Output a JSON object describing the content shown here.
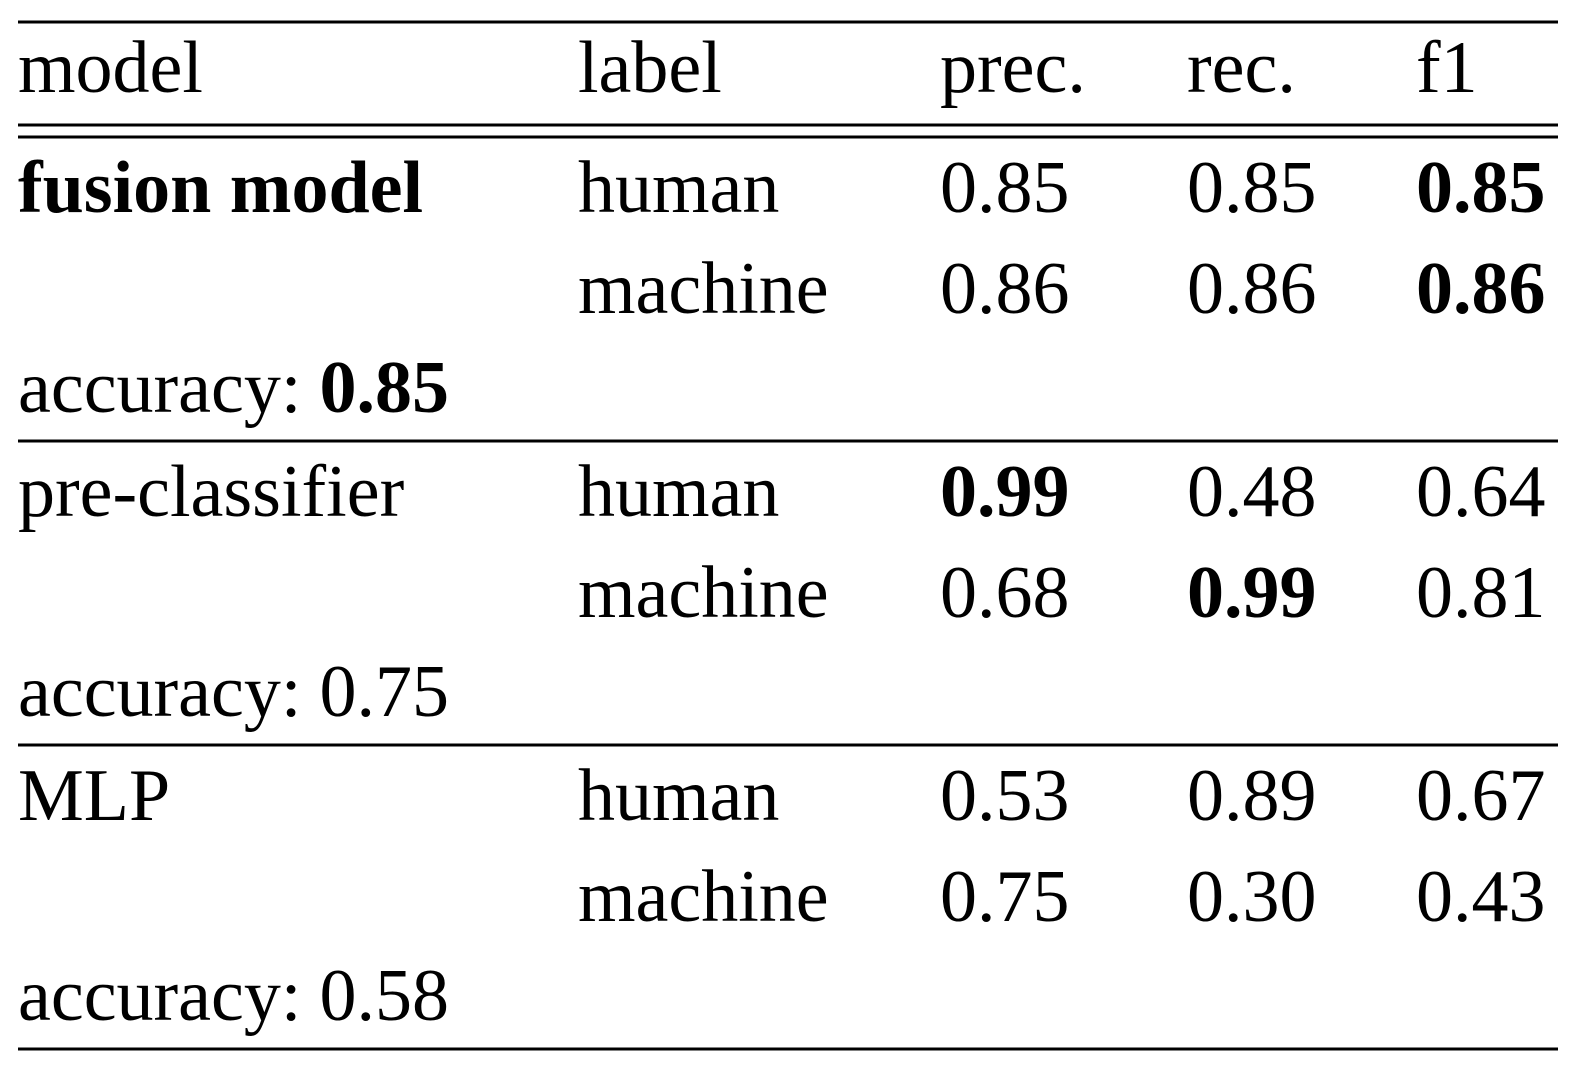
{
  "table": {
    "header": [
      "model",
      "label",
      "prec.",
      "rec.",
      "f1"
    ],
    "groups": [
      {
        "model": "fusion model",
        "rows": [
          [
            "human",
            "0.85",
            "0.85",
            "0.85"
          ],
          [
            "machine",
            "0.86",
            "0.86",
            "0.86"
          ]
        ],
        "accuracy_label": "accuracy:",
        "accuracy": "0.85"
      },
      {
        "model": "pre-classifier",
        "rows": [
          [
            "human",
            "0.99",
            "0.48",
            "0.64"
          ],
          [
            "machine",
            "0.68",
            "0.99",
            "0.81"
          ]
        ],
        "accuracy_label": "accuracy:",
        "accuracy": "0.75"
      },
      {
        "model": "MLP",
        "rows": [
          [
            "human",
            "0.53",
            "0.89",
            "0.67"
          ],
          [
            "machine",
            "0.75",
            "0.30",
            "0.43"
          ]
        ],
        "accuracy_label": "accuracy:",
        "accuracy": "0.58"
      }
    ]
  }
}
